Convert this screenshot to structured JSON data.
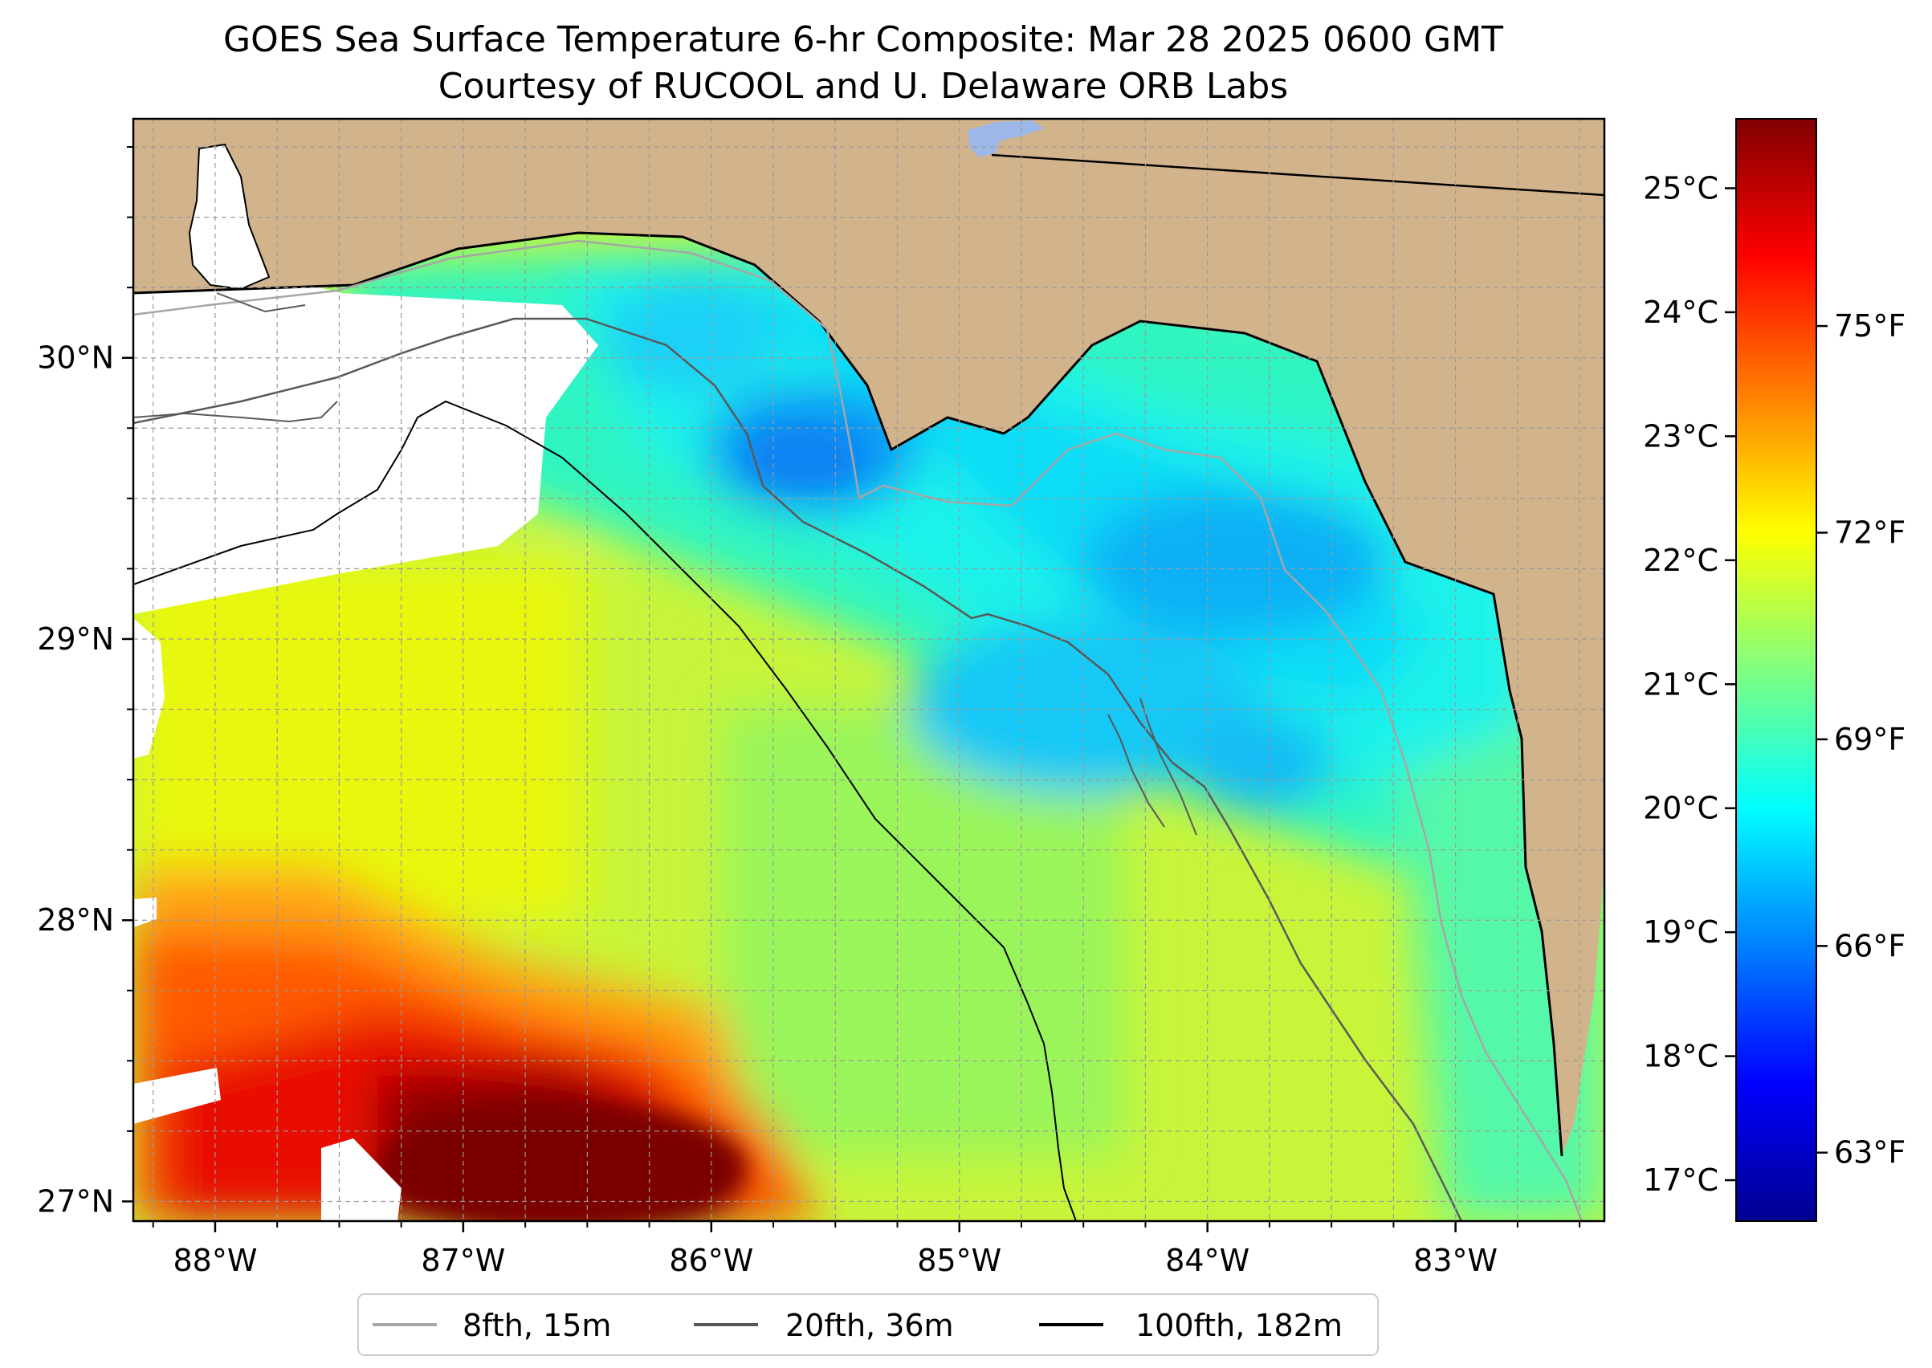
{
  "title": {
    "line1": "GOES Sea Surface Temperature 6-hr Composite: Mar 28 2025 0600 GMT",
    "line2": "Courtesy of RUCOOL and U. Delaware ORB Labs"
  },
  "map": {
    "lon_range": [
      -88.33,
      -82.4
    ],
    "lat_range": [
      26.93,
      30.85
    ],
    "lon_ticks": [
      {
        "value": -88,
        "label": "88°W"
      },
      {
        "value": -87,
        "label": "87°W"
      },
      {
        "value": -86,
        "label": "86°W"
      },
      {
        "value": -85,
        "label": "85°W"
      },
      {
        "value": -84,
        "label": "84°W"
      },
      {
        "value": -83,
        "label": "83°W"
      }
    ],
    "lat_ticks": [
      {
        "value": 27,
        "label": "27°N"
      },
      {
        "value": 28,
        "label": "28°N"
      },
      {
        "value": 29,
        "label": "29°N"
      },
      {
        "value": 30,
        "label": "30°N"
      }
    ],
    "colors": {
      "land": "#d2b48c",
      "no_data": "#ffffff",
      "lake": "#9db8e8",
      "grid": "#9a9a9a"
    }
  },
  "colorbar": {
    "celsius_ticks": [
      {
        "value": 17,
        "label": "17°C"
      },
      {
        "value": 18,
        "label": "18°C"
      },
      {
        "value": 19,
        "label": "19°C"
      },
      {
        "value": 20,
        "label": "20°C"
      },
      {
        "value": 21,
        "label": "21°C"
      },
      {
        "value": 22,
        "label": "22°C"
      },
      {
        "value": 23,
        "label": "23°C"
      },
      {
        "value": 24,
        "label": "24°C"
      },
      {
        "value": 25,
        "label": "25°C"
      }
    ],
    "fahrenheit_ticks": [
      {
        "value": 63,
        "label": "63°F"
      },
      {
        "value": 66,
        "label": "66°F"
      },
      {
        "value": 69,
        "label": "69°F"
      },
      {
        "value": 72,
        "label": "72°F"
      },
      {
        "value": 75,
        "label": "75°F"
      }
    ],
    "range_c": [
      16.67,
      25.56
    ],
    "colormap": [
      "#00008f",
      "#0000ff",
      "#0080ff",
      "#00ffff",
      "#80ff80",
      "#ffff00",
      "#ff8000",
      "#ff0000",
      "#800000"
    ]
  },
  "legend": {
    "items": [
      {
        "label": "8fth, 15m",
        "color": "#a6a6a6"
      },
      {
        "label": "20fth, 36m",
        "color": "#595959"
      },
      {
        "label": "100fth, 182m",
        "color": "#000000"
      }
    ]
  }
}
